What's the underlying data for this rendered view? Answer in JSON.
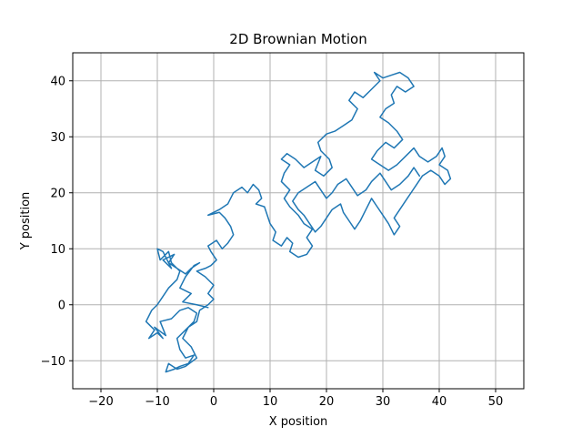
{
  "chart_data": {
    "type": "line",
    "title": "2D Brownian Motion",
    "xlabel": "X position",
    "ylabel": "Y position",
    "xlim": [
      -25,
      55
    ],
    "ylim": [
      -15,
      45
    ],
    "xticks": [
      -20,
      -10,
      0,
      10,
      20,
      30,
      40,
      50
    ],
    "yticks": [
      -10,
      0,
      10,
      20,
      30,
      40
    ],
    "xtick_labels": [
      "−20",
      "−10",
      "0",
      "10",
      "20",
      "30",
      "40",
      "50"
    ],
    "ytick_labels": [
      "−10",
      "0",
      "10",
      "20",
      "30",
      "40"
    ],
    "grid": true,
    "colors": {
      "line": "#1f77b4",
      "grid": "#b0b0b0",
      "axes": "#000000"
    },
    "series": [
      {
        "values": [
          [
            -1,
            -0.5
          ],
          [
            -3,
            0
          ],
          [
            -5.5,
            0.5
          ],
          [
            -4,
            2
          ],
          [
            -6,
            3
          ],
          [
            -5,
            5
          ],
          [
            -3.5,
            7
          ],
          [
            -2.5,
            7.5
          ],
          [
            -4,
            6.5
          ],
          [
            -5,
            5.5
          ],
          [
            -6.5,
            6.5
          ],
          [
            -8,
            7.5
          ],
          [
            -7,
            9
          ],
          [
            -9,
            8
          ],
          [
            -7.5,
            6.5
          ],
          [
            -9,
            9.5
          ],
          [
            -10,
            10
          ],
          [
            -9.5,
            8
          ],
          [
            -8,
            9.5
          ],
          [
            -7.5,
            7.5
          ],
          [
            -6,
            6
          ],
          [
            -6.5,
            4.5
          ],
          [
            -8,
            3
          ],
          [
            -9,
            1.5
          ],
          [
            -10,
            0
          ],
          [
            -11,
            -1
          ],
          [
            -12,
            -3
          ],
          [
            -10.5,
            -4.5
          ],
          [
            -11.5,
            -6
          ],
          [
            -10,
            -5
          ],
          [
            -9,
            -6
          ],
          [
            -10.5,
            -4
          ],
          [
            -8.5,
            -5.5
          ],
          [
            -9.5,
            -3
          ],
          [
            -7.5,
            -2.5
          ],
          [
            -6,
            -1
          ],
          [
            -4.5,
            -0.5
          ],
          [
            -3,
            -1.5
          ],
          [
            -3.5,
            -3
          ],
          [
            -5,
            -4.5
          ],
          [
            -6.5,
            -6
          ],
          [
            -6,
            -8
          ],
          [
            -5,
            -9.5
          ],
          [
            -3.5,
            -9
          ],
          [
            -4.5,
            -10.5
          ],
          [
            -6,
            -11
          ],
          [
            -7,
            -11.5
          ],
          [
            -8.5,
            -12
          ],
          [
            -8,
            -10.5
          ],
          [
            -6.5,
            -11.5
          ],
          [
            -5,
            -11
          ],
          [
            -3,
            -9.5
          ],
          [
            -4,
            -7.5
          ],
          [
            -5.5,
            -6
          ],
          [
            -4.5,
            -4
          ],
          [
            -3,
            -3
          ],
          [
            -2.5,
            -1
          ],
          [
            -1,
            0
          ],
          [
            0,
            1
          ],
          [
            -1,
            2
          ],
          [
            0,
            3.5
          ],
          [
            -1.5,
            5
          ],
          [
            -3,
            6
          ],
          [
            -1.5,
            6.5
          ],
          [
            -0.5,
            7
          ],
          [
            0.5,
            8
          ],
          [
            -0.5,
            9.5
          ],
          [
            -1,
            10.5
          ],
          [
            0.5,
            11.5
          ],
          [
            1.5,
            10
          ],
          [
            2.5,
            11
          ],
          [
            3.5,
            12.5
          ],
          [
            3,
            14
          ],
          [
            2,
            15.5
          ],
          [
            1,
            16.5
          ],
          [
            -1,
            16
          ],
          [
            1,
            17
          ],
          [
            2.5,
            18
          ],
          [
            3.5,
            20
          ],
          [
            5,
            21
          ],
          [
            6,
            20
          ],
          [
            7,
            21.5
          ],
          [
            8,
            20.5
          ],
          [
            8.5,
            19
          ],
          [
            7.5,
            18
          ],
          [
            9,
            17.5
          ],
          [
            9.5,
            16
          ],
          [
            10,
            14.5
          ],
          [
            11,
            13
          ],
          [
            10.5,
            11.5
          ],
          [
            12,
            10.5
          ],
          [
            13,
            12
          ],
          [
            14,
            11
          ],
          [
            13.5,
            9.5
          ],
          [
            15,
            8.5
          ],
          [
            16.5,
            9
          ],
          [
            17.5,
            10.5
          ],
          [
            16.5,
            12
          ],
          [
            17.5,
            13.5
          ],
          [
            16,
            14.5
          ],
          [
            15,
            16
          ],
          [
            13.5,
            17.5
          ],
          [
            12.5,
            19
          ],
          [
            13.5,
            20.5
          ],
          [
            12,
            22
          ],
          [
            12.5,
            23.5
          ],
          [
            13.5,
            25
          ],
          [
            12,
            26
          ],
          [
            13,
            27
          ],
          [
            14.5,
            26
          ],
          [
            16,
            24.5
          ],
          [
            17.5,
            25.5
          ],
          [
            19,
            26.5
          ],
          [
            18,
            24
          ],
          [
            19.5,
            23
          ],
          [
            21,
            24.5
          ],
          [
            20.5,
            26
          ],
          [
            19,
            27.5
          ],
          [
            18.5,
            29
          ],
          [
            20,
            30.5
          ],
          [
            21.5,
            31
          ],
          [
            23,
            32
          ],
          [
            24.5,
            33
          ],
          [
            25.5,
            35
          ],
          [
            24,
            36.5
          ],
          [
            25,
            38
          ],
          [
            26.5,
            37
          ],
          [
            28,
            38.5
          ],
          [
            29.5,
            40
          ],
          [
            28.5,
            41.5
          ],
          [
            30,
            40.5
          ],
          [
            31.5,
            41
          ],
          [
            33,
            41.5
          ],
          [
            34.5,
            40.5
          ],
          [
            35.5,
            39
          ],
          [
            34,
            38
          ],
          [
            32.5,
            39
          ],
          [
            31.5,
            37.5
          ],
          [
            32,
            36
          ],
          [
            30.5,
            35
          ],
          [
            29.5,
            33.5
          ],
          [
            31,
            32.5
          ],
          [
            32.5,
            31
          ],
          [
            33.5,
            29.5
          ],
          [
            32,
            28
          ],
          [
            30.5,
            29
          ],
          [
            29,
            27.5
          ],
          [
            28,
            26
          ],
          [
            29.5,
            25
          ],
          [
            31,
            24
          ],
          [
            32.5,
            25
          ],
          [
            34,
            26.5
          ],
          [
            35.5,
            28
          ],
          [
            36.5,
            26.5
          ],
          [
            38,
            25.5
          ],
          [
            39.5,
            26.5
          ],
          [
            40.5,
            28
          ],
          [
            41,
            26.5
          ],
          [
            40,
            25
          ],
          [
            41.5,
            24
          ],
          [
            42,
            22.5
          ],
          [
            41,
            21.5
          ],
          [
            40,
            23
          ],
          [
            38.5,
            24
          ],
          [
            37,
            23
          ],
          [
            36,
            21.5
          ],
          [
            35,
            20
          ],
          [
            34,
            18.5
          ],
          [
            33,
            17
          ],
          [
            32,
            15.5
          ],
          [
            33,
            14
          ],
          [
            32,
            12.5
          ],
          [
            31,
            14.5
          ],
          [
            30,
            16
          ],
          [
            29,
            17.5
          ],
          [
            28,
            19
          ],
          [
            27,
            17
          ],
          [
            26,
            15
          ],
          [
            25,
            13.5
          ],
          [
            24,
            15
          ],
          [
            23,
            16.5
          ],
          [
            22.5,
            18
          ],
          [
            21,
            17
          ],
          [
            20,
            15.5
          ],
          [
            19,
            14
          ],
          [
            18,
            13
          ],
          [
            17,
            14.5
          ],
          [
            16,
            16
          ],
          [
            15,
            17
          ],
          [
            14,
            18.5
          ],
          [
            15,
            20
          ],
          [
            16.5,
            21
          ],
          [
            18,
            22
          ],
          [
            19,
            20.5
          ],
          [
            20,
            19
          ],
          [
            21,
            20
          ],
          [
            22,
            21.5
          ],
          [
            23.5,
            22.5
          ],
          [
            24.5,
            21
          ],
          [
            25.5,
            19.5
          ],
          [
            27,
            20.5
          ],
          [
            28,
            22
          ],
          [
            29.5,
            23.5
          ],
          [
            30.5,
            22
          ],
          [
            31.5,
            20.5
          ],
          [
            33,
            21.5
          ],
          [
            34.5,
            23
          ],
          [
            35.5,
            24.5
          ],
          [
            36.5,
            23
          ]
        ]
      }
    ]
  }
}
